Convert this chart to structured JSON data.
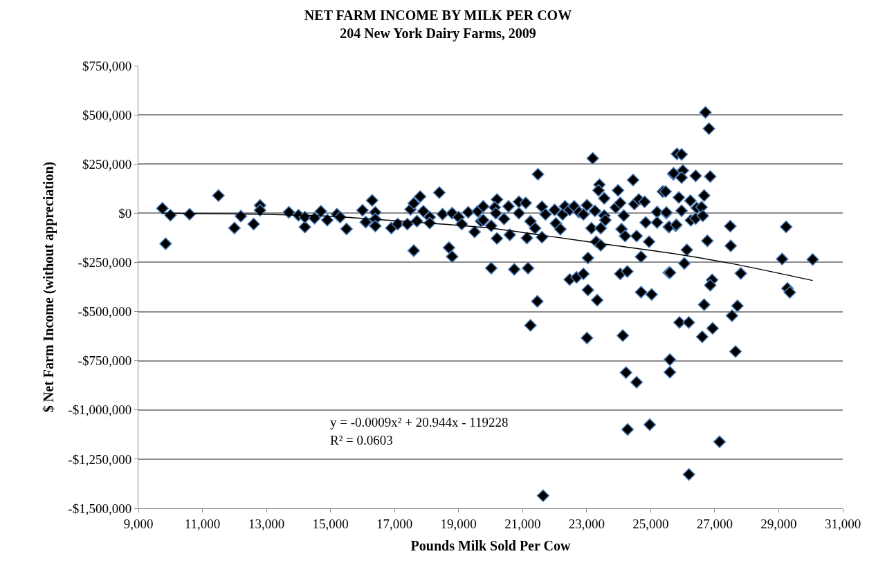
{
  "chart_data": {
    "type": "scatter",
    "title": "NET FARM INCOME BY MILK PER COW",
    "subtitle": "204 New York Dairy Farms, 2009",
    "xlabel": "Pounds Milk Sold Per Cow",
    "ylabel": "$ Net Farm Income (without appreciation)",
    "xlim": [
      9000,
      31000
    ],
    "xticks": [
      {
        "value": 9000,
        "label": "9,000"
      },
      {
        "value": 11000,
        "label": "11,000"
      },
      {
        "value": 13000,
        "label": "13,000"
      },
      {
        "value": 15000,
        "label": "15,000"
      },
      {
        "value": 17000,
        "label": "17,000"
      },
      {
        "value": 19000,
        "label": "19,000"
      },
      {
        "value": 21000,
        "label": "21,000"
      },
      {
        "value": 23000,
        "label": "23,000"
      },
      {
        "value": 25000,
        "label": "25,000"
      },
      {
        "value": 27000,
        "label": "27,000"
      },
      {
        "value": 29000,
        "label": "29,000"
      },
      {
        "value": 31000,
        "label": "31,000"
      }
    ],
    "ylim": [
      -1500000,
      750000
    ],
    "yticks": [
      {
        "value": 750000,
        "label": "$750,000"
      },
      {
        "value": 500000,
        "label": "$500,000"
      },
      {
        "value": 250000,
        "label": "$250,000"
      },
      {
        "value": 0,
        "label": "$0"
      },
      {
        "value": -250000,
        "label": "-$250,000"
      },
      {
        "value": -500000,
        "label": "-$500,000"
      },
      {
        "value": -750000,
        "label": "-$750,000"
      },
      {
        "value": -1000000,
        "label": "-$1,000,000"
      },
      {
        "value": -1250000,
        "label": "-$1,250,000"
      },
      {
        "value": -1500000,
        "label": "-$1,500,000"
      }
    ],
    "grid": "y",
    "marker": "diamond",
    "annotations": [
      "y = -0.0009x² + 20.944x - 119228",
      "R² = 0.0603"
    ],
    "series": [
      {
        "color": "#000000",
        "x": [
          9750,
          9850,
          10000,
          10600,
          11500,
          12000,
          12200,
          12600,
          12800,
          12800,
          13700,
          14000,
          14200,
          14200,
          14500,
          14700,
          14900,
          15200,
          15300,
          15500,
          16000,
          16100,
          16300,
          16400,
          16400,
          16400,
          16900,
          17100,
          17400,
          17500,
          17600,
          17600,
          17700,
          17800,
          17900,
          18100,
          18100,
          18400,
          18500,
          18700,
          18800,
          18800,
          19000,
          19100,
          19300,
          19500,
          19600,
          19700,
          19770,
          19770,
          20020,
          20200,
          20130,
          20165,
          20420,
          20560,
          20600,
          20200,
          20020,
          20740,
          21170,
          20885,
          20885,
          21100,
          21245,
          21390,
          21605,
          21135,
          21480,
          21605,
          21715,
          22000,
          22040,
          22180,
          22250,
          22325,
          22470,
          22610,
          22760,
          22900,
          23010,
          23150,
          23260,
          23190,
          23400,
          23370,
          23550,
          23550,
          23585,
          23440,
          23300,
          23440,
          23040,
          23980,
          23910,
          24050,
          24160,
          24090,
          24200,
          24560,
          24450,
          24490,
          24630,
          24810,
          24845,
          24950,
          24700,
          25200,
          25380,
          25490,
          25200,
          25565,
          25565,
          25780,
          25710,
          25820,
          24050,
          24270,
          22470,
          22685,
          22900,
          23040,
          23330,
          21460,
          24700,
          25030,
          21245,
          23010,
          24130,
          25600,
          25600,
          24230,
          21640,
          24280,
          24970,
          24560,
          26710,
          26820,
          25965,
          25715,
          26005,
          25965,
          26405,
          26860,
          25465,
          25880,
          26240,
          26670,
          26440,
          26590,
          25965,
          25490,
          26255,
          26405,
          26630,
          25575,
          25800,
          27485,
          29230,
          26770,
          27500,
          26130,
          26050,
          25605,
          29105,
          30060,
          27815,
          26920,
          26860,
          29270,
          29345,
          26670,
          27710,
          27540,
          25900,
          26190,
          26935,
          26610,
          27650,
          27150,
          26195
        ],
        "values": [
          25000,
          -155000,
          -10000,
          -5000,
          90000,
          -75000,
          -15000,
          -55000,
          40000,
          15000,
          5000,
          -10000,
          -70000,
          -20000,
          -25000,
          10000,
          -35000,
          -5000,
          -20000,
          -80000,
          15000,
          -45000,
          65000,
          5000,
          -30000,
          -65000,
          -75000,
          -55000,
          -55000,
          20000,
          -190000,
          50000,
          -40000,
          85000,
          10000,
          -20000,
          -50000,
          105000,
          -5000,
          -175000,
          -220000,
          0,
          -20000,
          -55000,
          5000,
          -95000,
          10000,
          -40000,
          35000,
          -35000,
          -64000,
          70000,
          29000,
          0,
          -29000,
          35000,
          -110000,
          -128000,
          -279000,
          -285000,
          -279000,
          58000,
          0,
          52000,
          -41000,
          -76000,
          -122000,
          -126000,
          198000,
          33000,
          -6000,
          17000,
          -52000,
          -81000,
          -6000,
          35000,
          17000,
          35000,
          6000,
          -6000,
          41000,
          -76000,
          12000,
          279000,
          145000,
          116000,
          76000,
          -12000,
          -35000,
          -76000,
          -145000,
          -163000,
          -227000,
          116000,
          29000,
          52000,
          -12000,
          -81000,
          -116000,
          -116000,
          169000,
          47000,
          70000,
          58000,
          -47000,
          -145000,
          -221000,
          6000,
          110000,
          0,
          -47000,
          -70000,
          -302000,
          -64000,
          198000,
          302000,
          -308000,
          -296000,
          -337000,
          -326000,
          -308000,
          -390000,
          -442000,
          -448000,
          -401000,
          -413000,
          -570000,
          -634000,
          -622000,
          -744000,
          -808000,
          -810000,
          -1436000,
          -1099000,
          -1075000,
          -859000,
          513000,
          430000,
          299000,
          203000,
          217000,
          181000,
          190000,
          187000,
          110000,
          80000,
          64000,
          90000,
          27000,
          31000,
          13000,
          4000,
          -36000,
          -27000,
          -13000,
          -69000,
          -59000,
          -66000,
          -69000,
          -140000,
          -166000,
          -186000,
          -255000,
          -302000,
          -233000,
          -235000,
          -306000,
          -339000,
          -366000,
          -382000,
          -402000,
          -465000,
          -471000,
          -521000,
          -555000,
          -555000,
          -585000,
          -628000,
          -703000,
          -1162000,
          -1328000
        ]
      },
      {
        "type": "line",
        "color": "#000000",
        "marker": "none",
        "line_style": "solid",
        "x": [
          9750,
          12000,
          14770,
          17640,
          19800,
          21533,
          23693,
          25853,
          27500,
          30060
        ],
        "values": [
          0,
          -3000,
          -14000,
          -45000,
          -73000,
          -110000,
          -160000,
          -209000,
          -255000,
          -342000
        ]
      }
    ]
  }
}
